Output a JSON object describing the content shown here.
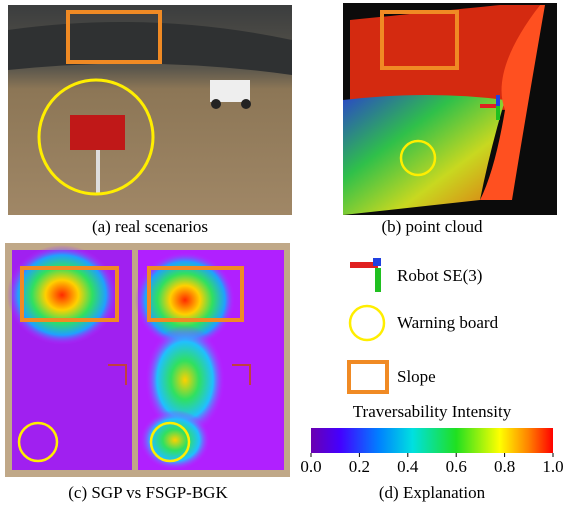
{
  "panels": {
    "a": {
      "caption": "(a) real scenarios"
    },
    "b": {
      "caption": "(b) point cloud"
    },
    "c": {
      "caption": "(c) SGP vs  FSGP-BGK"
    },
    "d": {
      "caption": "(d) Explanation"
    }
  },
  "legend": {
    "items": [
      {
        "label": "Robot SE(3)"
      },
      {
        "label": "Warning board"
      },
      {
        "label": "Slope"
      }
    ]
  },
  "colorbar": {
    "title": "Traversability Intensity",
    "range": [
      0,
      1
    ],
    "ticks": [
      {
        "value": 0,
        "label": "0.0"
      },
      {
        "value": 0.2,
        "label": "0.2"
      },
      {
        "value": 0.4,
        "label": "0.4"
      },
      {
        "value": 0.6,
        "label": "0.6"
      },
      {
        "value": 0.8,
        "label": "0.8"
      },
      {
        "value": 1,
        "label": "1.0"
      }
    ]
  }
}
